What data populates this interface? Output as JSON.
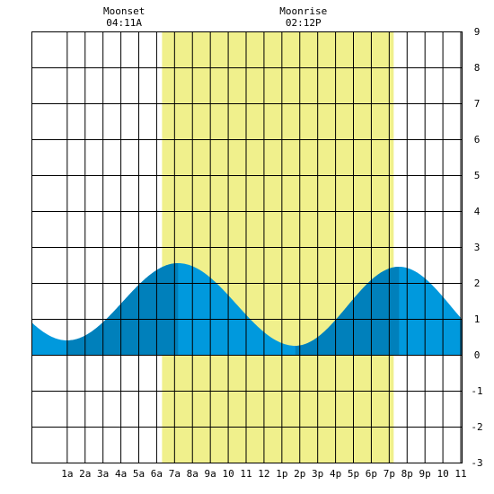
{
  "chart_data": {
    "type": "area",
    "title": "",
    "xlabel": "",
    "ylabel": "",
    "x_range_hours": [
      -1,
      23.1
    ],
    "ylim": [
      -3,
      9
    ],
    "y_ticks": [
      -3,
      -2,
      -1,
      0,
      1,
      2,
      3,
      4,
      5,
      6,
      7,
      8,
      9
    ],
    "x_ticks": [
      {
        "hour": 1,
        "label": "1a"
      },
      {
        "hour": 2,
        "label": "2a"
      },
      {
        "hour": 3,
        "label": "3a"
      },
      {
        "hour": 4,
        "label": "4a"
      },
      {
        "hour": 5,
        "label": "5a"
      },
      {
        "hour": 6,
        "label": "6a"
      },
      {
        "hour": 7,
        "label": "7a"
      },
      {
        "hour": 8,
        "label": "8a"
      },
      {
        "hour": 9,
        "label": "9a"
      },
      {
        "hour": 10,
        "label": "10"
      },
      {
        "hour": 11,
        "label": "11"
      },
      {
        "hour": 12,
        "label": "12"
      },
      {
        "hour": 13,
        "label": "1p"
      },
      {
        "hour": 14,
        "label": "2p"
      },
      {
        "hour": 15,
        "label": "3p"
      },
      {
        "hour": 16,
        "label": "4p"
      },
      {
        "hour": 17,
        "label": "5p"
      },
      {
        "hour": 18,
        "label": "6p"
      },
      {
        "hour": 19,
        "label": "7p"
      },
      {
        "hour": 20,
        "label": "8p"
      },
      {
        "hour": 21,
        "label": "9p"
      },
      {
        "hour": 22,
        "label": "10"
      },
      {
        "hour": 23,
        "label": "11"
      }
    ],
    "grid": true,
    "daylight": {
      "start_hour": 6.3,
      "end_hour": 19.25
    },
    "tide_extrema": [
      {
        "hour": 1.0,
        "height": 0.4,
        "type": "low"
      },
      {
        "hour": 7.2,
        "height": 2.55,
        "type": "high"
      },
      {
        "hour": 13.75,
        "height": 0.25,
        "type": "low"
      },
      {
        "hour": 19.55,
        "height": 2.45,
        "type": "high"
      }
    ],
    "dark_bands": [
      {
        "start_hour": 1.0,
        "end_hour": 7.2
      },
      {
        "start_hour": 13.75,
        "end_hour": 19.55
      }
    ],
    "events": [
      {
        "name": "Moonset",
        "time": "04:11A",
        "hour": 4.18
      },
      {
        "name": "Moonrise",
        "time": "02:12P",
        "hour": 14.2
      }
    ],
    "colors": {
      "daylight": "#f0f08c",
      "tide": "#0099dd",
      "tide_dark": "#0080bb",
      "grid": "#000000",
      "background": "#ffffff"
    }
  }
}
